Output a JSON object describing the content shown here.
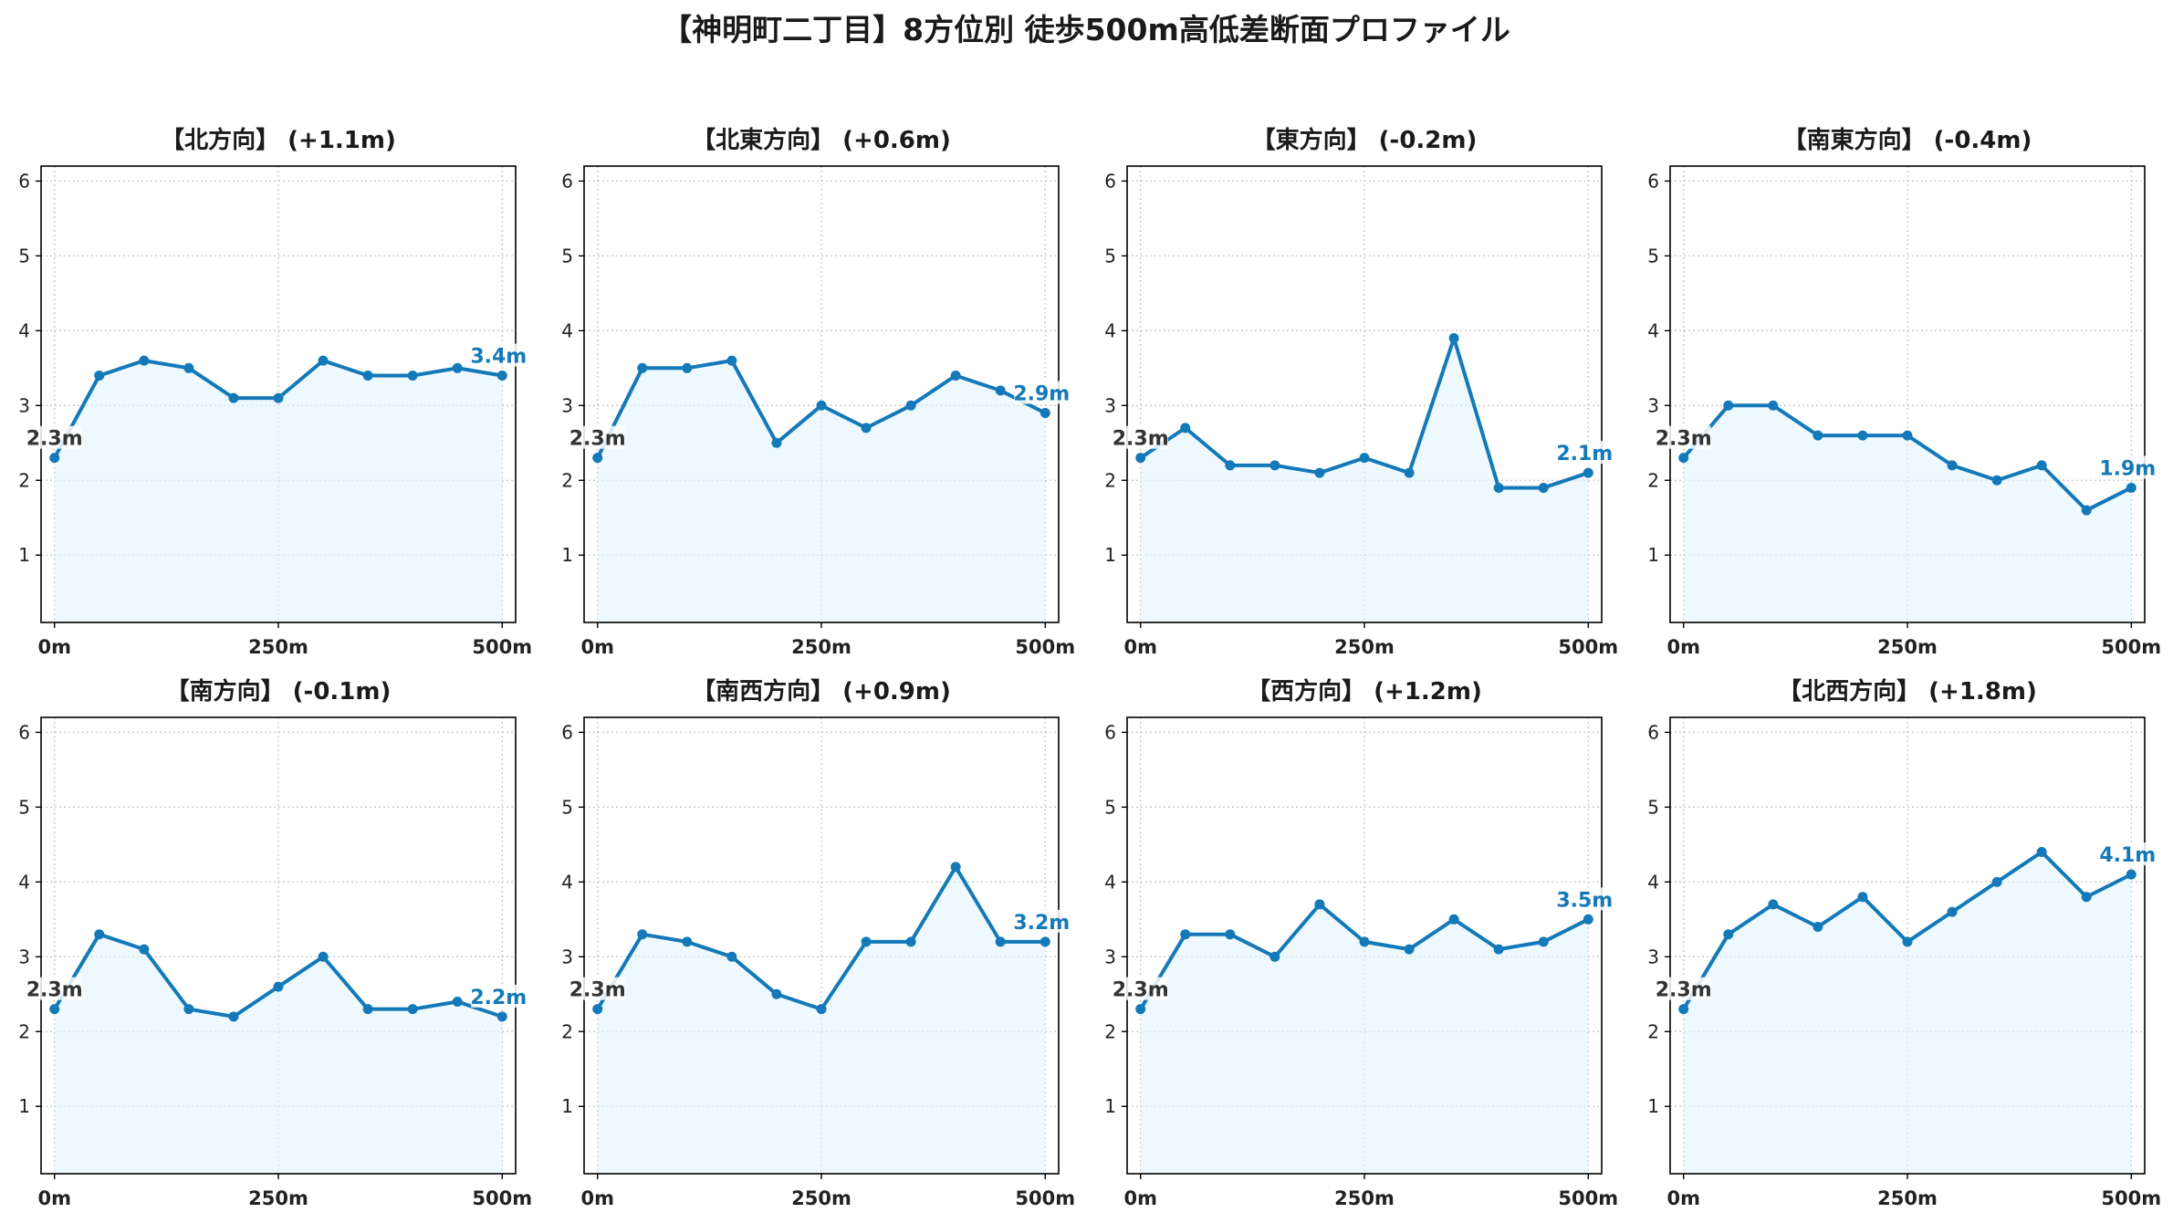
{
  "title": "【神明町二丁目】8方位別 徒歩500m高低差断面プロファイル",
  "colors": {
    "line": "#1479b8",
    "fill": "#e1f5fd",
    "start_label": "#333333",
    "end_label": "#1479b8"
  },
  "chart_data": [
    {
      "type": "area",
      "title": "【北方向】 (+1.1m)",
      "x": [
        0,
        50,
        100,
        150,
        200,
        250,
        300,
        350,
        400,
        450,
        500
      ],
      "values": [
        2.3,
        3.4,
        3.6,
        3.5,
        3.1,
        3.1,
        3.6,
        3.4,
        3.4,
        3.5,
        3.4
      ],
      "start_label": "2.3m",
      "end_label": "3.4m",
      "x_ticks": [
        "0m",
        "250m",
        "500m"
      ],
      "y_ticks": [
        "1",
        "2",
        "3",
        "4",
        "5",
        "6"
      ],
      "xlim": [
        -15,
        515
      ],
      "ylim": [
        0.1,
        6.2
      ],
      "grid": true
    },
    {
      "type": "area",
      "title": "【北東方向】 (+0.6m)",
      "x": [
        0,
        50,
        100,
        150,
        200,
        250,
        300,
        350,
        400,
        450,
        500
      ],
      "values": [
        2.3,
        3.5,
        3.5,
        3.6,
        2.5,
        3.0,
        2.7,
        3.0,
        3.4,
        3.2,
        2.9
      ],
      "start_label": "2.3m",
      "end_label": "2.9m",
      "x_ticks": [
        "0m",
        "250m",
        "500m"
      ],
      "y_ticks": [
        "1",
        "2",
        "3",
        "4",
        "5",
        "6"
      ],
      "xlim": [
        -15,
        515
      ],
      "ylim": [
        0.1,
        6.2
      ],
      "grid": true
    },
    {
      "type": "area",
      "title": "【東方向】 (-0.2m)",
      "x": [
        0,
        50,
        100,
        150,
        200,
        250,
        300,
        350,
        400,
        450,
        500
      ],
      "values": [
        2.3,
        2.7,
        2.2,
        2.2,
        2.1,
        2.3,
        2.1,
        3.9,
        1.9,
        1.9,
        2.1
      ],
      "start_label": "2.3m",
      "end_label": "2.1m",
      "x_ticks": [
        "0m",
        "250m",
        "500m"
      ],
      "y_ticks": [
        "1",
        "2",
        "3",
        "4",
        "5",
        "6"
      ],
      "xlim": [
        -15,
        515
      ],
      "ylim": [
        0.1,
        6.2
      ],
      "grid": true
    },
    {
      "type": "area",
      "title": "【南東方向】 (-0.4m)",
      "x": [
        0,
        50,
        100,
        150,
        200,
        250,
        300,
        350,
        400,
        450,
        500
      ],
      "values": [
        2.3,
        3.0,
        3.0,
        2.6,
        2.6,
        2.6,
        2.2,
        2.0,
        2.2,
        1.6,
        1.9
      ],
      "start_label": "2.3m",
      "end_label": "1.9m",
      "x_ticks": [
        "0m",
        "250m",
        "500m"
      ],
      "y_ticks": [
        "1",
        "2",
        "3",
        "4",
        "5",
        "6"
      ],
      "xlim": [
        -15,
        515
      ],
      "ylim": [
        0.1,
        6.2
      ],
      "grid": true
    },
    {
      "type": "area",
      "title": "【南方向】 (-0.1m)",
      "x": [
        0,
        50,
        100,
        150,
        200,
        250,
        300,
        350,
        400,
        450,
        500
      ],
      "values": [
        2.3,
        3.3,
        3.1,
        2.3,
        2.2,
        2.6,
        3.0,
        2.3,
        2.3,
        2.4,
        2.2
      ],
      "start_label": "2.3m",
      "end_label": "2.2m",
      "x_ticks": [
        "0m",
        "250m",
        "500m"
      ],
      "y_ticks": [
        "1",
        "2",
        "3",
        "4",
        "5",
        "6"
      ],
      "xlim": [
        -15,
        515
      ],
      "ylim": [
        0.1,
        6.2
      ],
      "grid": true
    },
    {
      "type": "area",
      "title": "【南西方向】 (+0.9m)",
      "x": [
        0,
        50,
        100,
        150,
        200,
        250,
        300,
        350,
        400,
        450,
        500
      ],
      "values": [
        2.3,
        3.3,
        3.2,
        3.0,
        2.5,
        2.3,
        3.2,
        3.2,
        4.2,
        3.2,
        3.2
      ],
      "start_label": "2.3m",
      "end_label": "3.2m",
      "x_ticks": [
        "0m",
        "250m",
        "500m"
      ],
      "y_ticks": [
        "1",
        "2",
        "3",
        "4",
        "5",
        "6"
      ],
      "xlim": [
        -15,
        515
      ],
      "ylim": [
        0.1,
        6.2
      ],
      "grid": true
    },
    {
      "type": "area",
      "title": "【西方向】 (+1.2m)",
      "x": [
        0,
        50,
        100,
        150,
        200,
        250,
        300,
        350,
        400,
        450,
        500
      ],
      "values": [
        2.3,
        3.3,
        3.3,
        3.0,
        3.7,
        3.2,
        3.1,
        3.5,
        3.1,
        3.2,
        3.5
      ],
      "start_label": "2.3m",
      "end_label": "3.5m",
      "x_ticks": [
        "0m",
        "250m",
        "500m"
      ],
      "y_ticks": [
        "1",
        "2",
        "3",
        "4",
        "5",
        "6"
      ],
      "xlim": [
        -15,
        515
      ],
      "ylim": [
        0.1,
        6.2
      ],
      "grid": true
    },
    {
      "type": "area",
      "title": "【北西方向】 (+1.8m)",
      "x": [
        0,
        50,
        100,
        150,
        200,
        250,
        300,
        350,
        400,
        450,
        500
      ],
      "values": [
        2.3,
        3.3,
        3.7,
        3.4,
        3.8,
        3.2,
        3.6,
        4.0,
        4.4,
        3.8,
        4.1
      ],
      "start_label": "2.3m",
      "end_label": "4.1m",
      "x_ticks": [
        "0m",
        "250m",
        "500m"
      ],
      "y_ticks": [
        "1",
        "2",
        "3",
        "4",
        "5",
        "6"
      ],
      "xlim": [
        -15,
        515
      ],
      "ylim": [
        0.1,
        6.2
      ],
      "grid": true
    }
  ]
}
